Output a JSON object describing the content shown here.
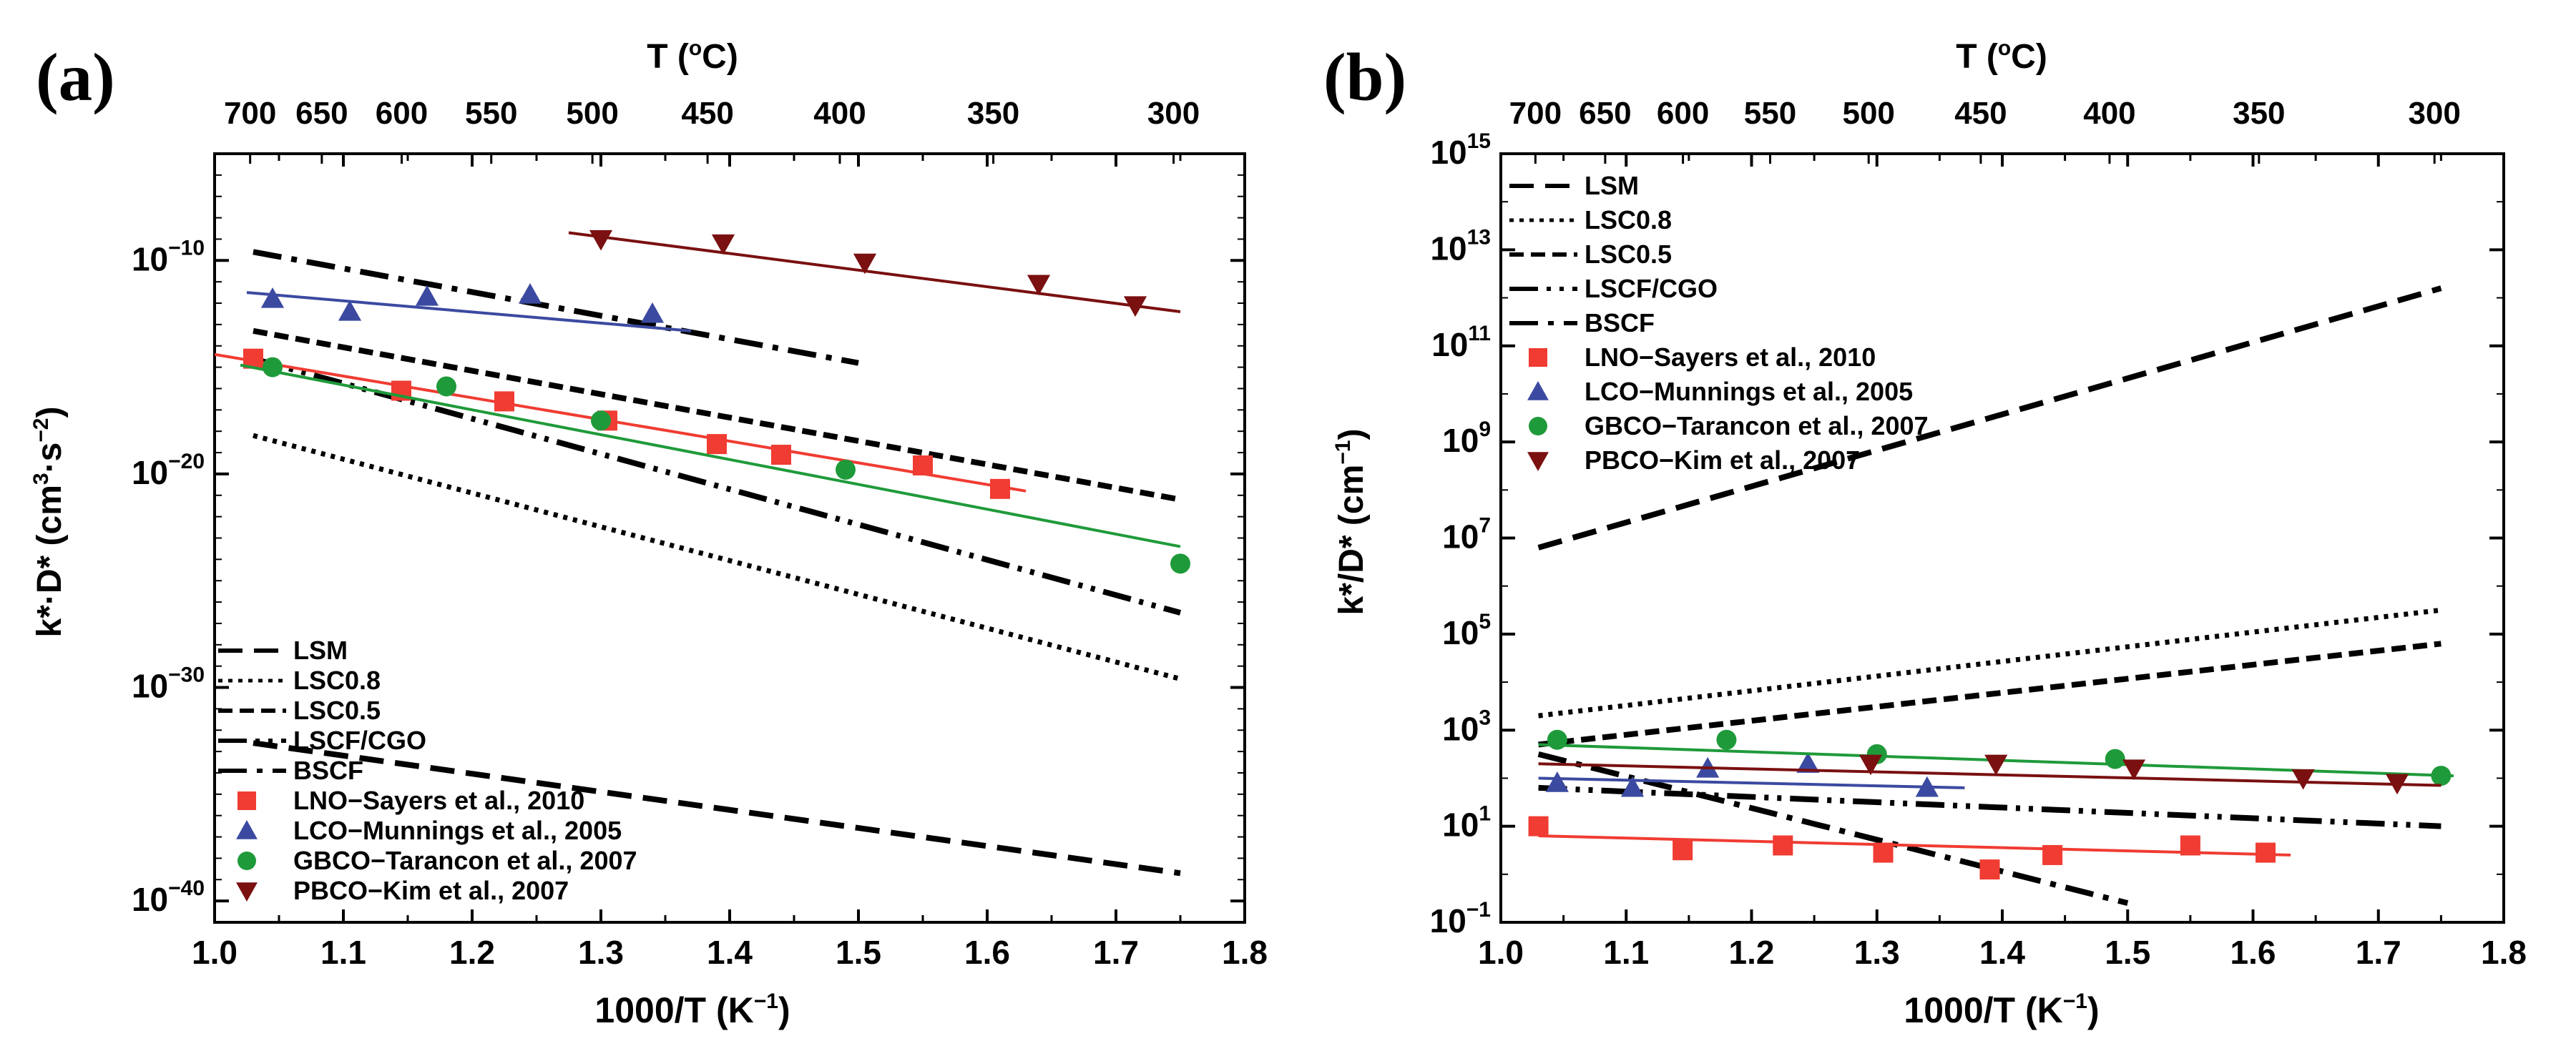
{
  "figure": {
    "panels": [
      "(a)",
      "(b)"
    ]
  },
  "colors": {
    "red": "#f03c32",
    "blue": "#3b4aa0",
    "green": "#1f9a3a",
    "darkred": "#7a1010",
    "black": "#000000"
  },
  "chart_data": [
    {
      "type": "scatter",
      "panel": "(a)",
      "xlabel": "1000/T (K",
      "xlabel_sup": "−1",
      "xlabel_end": ")",
      "ylabel": "k*·D* (cm",
      "ylabel_sup1": "3",
      "ylabel_mid": "·s",
      "ylabel_sup2": "−2",
      "ylabel_end": ")",
      "top_axis_label": "T (",
      "top_axis_sup": "o",
      "top_axis_end": "C)",
      "xlim": [
        1.0,
        1.8
      ],
      "y_scale": "log",
      "ylim_log10": [
        -41,
        -5
      ],
      "x_ticks": [
        "1.0",
        "1.1",
        "1.2",
        "1.3",
        "1.4",
        "1.5",
        "1.6",
        "1.7",
        "1.8"
      ],
      "y_ticks": [
        {
          "base": "10",
          "exp": "−10"
        },
        {
          "base": "10",
          "exp": "−20"
        },
        {
          "base": "10",
          "exp": "−30"
        },
        {
          "base": "10",
          "exp": "−40"
        }
      ],
      "top_ticks_C": [
        "700",
        "650",
        "600",
        "550",
        "500",
        "450",
        "400",
        "350",
        "300"
      ],
      "legend_position": "bottom-left",
      "lines": [
        {
          "name": "LSM",
          "style": "dash",
          "x": [
            1.03,
            1.75
          ],
          "y_log10": [
            -32.6,
            -38.7
          ]
        },
        {
          "name": "LSC0.8",
          "style": "dot",
          "x": [
            1.03,
            1.75
          ],
          "y_log10": [
            -18.2,
            -29.6
          ]
        },
        {
          "name": "LSC0.5",
          "style": "dashshort",
          "x": [
            1.03,
            1.75
          ],
          "y_log10": [
            -13.3,
            -21.2
          ]
        },
        {
          "name": "LSCF/CGO",
          "style": "dashdotdot",
          "x": [
            1.03,
            1.75
          ],
          "y_log10": [
            -14.6,
            -26.5
          ]
        },
        {
          "name": "BSCF",
          "style": "dashdot",
          "x": [
            1.03,
            1.5
          ],
          "y_log10": [
            -9.6,
            -14.8
          ]
        }
      ],
      "series": [
        {
          "name": "LNO−Sayers et al., 2010",
          "marker": "square",
          "color": "#f03c32",
          "x": [
            1.03,
            1.145,
            1.225,
            1.305,
            1.39,
            1.44,
            1.55,
            1.61
          ],
          "y_log10": [
            -14.6,
            -16.1,
            -16.6,
            -17.5,
            -18.6,
            -19.1,
            -19.6,
            -20.7
          ],
          "fit_x": [
            1.0,
            1.63
          ],
          "fit_y_log10": [
            -14.4,
            -20.8
          ]
        },
        {
          "name": "LCO−Munnings et al., 2005",
          "marker": "triangle-up",
          "color": "#3b4aa0",
          "x": [
            1.045,
            1.105,
            1.165,
            1.245,
            1.34
          ],
          "y_log10": [
            -11.8,
            -12.4,
            -11.7,
            -11.6,
            -12.5
          ],
          "fit_x": [
            1.025,
            1.37
          ],
          "fit_y_log10": [
            -11.5,
            -13.3
          ]
        },
        {
          "name": "GBCO−Tarancon et al., 2007",
          "marker": "circle",
          "color": "#1f9a3a",
          "x": [
            1.045,
            1.18,
            1.3,
            1.49,
            1.75
          ],
          "y_log10": [
            -15.0,
            -15.9,
            -17.5,
            -19.8,
            -24.2
          ],
          "fit_x": [
            1.02,
            1.75
          ],
          "fit_y_log10": [
            -14.9,
            -23.4
          ]
        },
        {
          "name": "PBCO−Kim et al., 2007",
          "marker": "triangle-down",
          "color": "#7a1010",
          "x": [
            1.3,
            1.395,
            1.505,
            1.64,
            1.715
          ],
          "y_log10": [
            -9.0,
            -9.2,
            -10.1,
            -11.1,
            -12.1
          ],
          "fit_x": [
            1.275,
            1.75
          ],
          "fit_y_log10": [
            -8.7,
            -12.4
          ]
        }
      ]
    },
    {
      "type": "scatter",
      "panel": "(b)",
      "xlabel": "1000/T (K",
      "xlabel_sup": "−1",
      "xlabel_end": ")",
      "ylabel": "k*/D* (cm",
      "ylabel_sup1": "−1",
      "ylabel_end": ")",
      "top_axis_label": "T (",
      "top_axis_sup": "o",
      "top_axis_end": "C)",
      "xlim": [
        1.0,
        1.8
      ],
      "y_scale": "log",
      "ylim_log10": [
        -1,
        15
      ],
      "x_ticks": [
        "1.0",
        "1.1",
        "1.2",
        "1.3",
        "1.4",
        "1.5",
        "1.6",
        "1.7",
        "1.8"
      ],
      "y_ticks": [
        {
          "base": "10",
          "exp": "15"
        },
        {
          "base": "10",
          "exp": "13"
        },
        {
          "base": "10",
          "exp": "11"
        },
        {
          "base": "10",
          "exp": "9"
        },
        {
          "base": "10",
          "exp": "7"
        },
        {
          "base": "10",
          "exp": "5"
        },
        {
          "base": "10",
          "exp": "3"
        },
        {
          "base": "10",
          "exp": "1"
        },
        {
          "base": "10",
          "exp": "−1"
        }
      ],
      "top_ticks_C": [
        "700",
        "650",
        "600",
        "550",
        "500",
        "450",
        "400",
        "350",
        "300"
      ],
      "legend_position": "top-left",
      "lines": [
        {
          "name": "LSM",
          "style": "dash",
          "x": [
            1.03,
            1.75
          ],
          "y_log10": [
            6.8,
            12.2
          ]
        },
        {
          "name": "LSC0.8",
          "style": "dot",
          "x": [
            1.03,
            1.75
          ],
          "y_log10": [
            3.3,
            5.5
          ]
        },
        {
          "name": "LSC0.5",
          "style": "dashshort",
          "x": [
            1.03,
            1.75
          ],
          "y_log10": [
            2.7,
            4.8
          ]
        },
        {
          "name": "LSCF/CGO",
          "style": "dashdotdot",
          "x": [
            1.03,
            1.75
          ],
          "y_log10": [
            1.8,
            1.0
          ]
        },
        {
          "name": "BSCF",
          "style": "dashdot",
          "x": [
            1.03,
            1.5
          ],
          "y_log10": [
            2.5,
            -0.6
          ]
        }
      ],
      "series": [
        {
          "name": "LNO−Sayers et al., 2010",
          "marker": "square",
          "color": "#f03c32",
          "x": [
            1.03,
            1.145,
            1.225,
            1.305,
            1.39,
            1.44,
            1.55,
            1.61
          ],
          "y_log10": [
            1.0,
            0.5,
            0.6,
            0.45,
            0.1,
            0.4,
            0.6,
            0.45
          ],
          "fit_x": [
            1.03,
            1.63
          ],
          "fit_y_log10": [
            0.8,
            0.4
          ]
        },
        {
          "name": "LCO−Munnings et al., 2005",
          "marker": "triangle-up",
          "color": "#3b4aa0",
          "x": [
            1.045,
            1.105,
            1.165,
            1.245,
            1.34
          ],
          "y_log10": [
            1.9,
            1.8,
            2.2,
            2.3,
            1.8
          ],
          "fit_x": [
            1.03,
            1.37
          ],
          "fit_y_log10": [
            2.0,
            1.8
          ]
        },
        {
          "name": "GBCO−Tarancon et al., 2007",
          "marker": "circle",
          "color": "#1f9a3a",
          "x": [
            1.045,
            1.18,
            1.3,
            1.49,
            1.75
          ],
          "y_log10": [
            2.8,
            2.8,
            2.5,
            2.4,
            2.05
          ],
          "fit_x": [
            1.03,
            1.76
          ],
          "fit_y_log10": [
            2.7,
            2.05
          ]
        },
        {
          "name": "PBCO−Kim et al., 2007",
          "marker": "triangle-down",
          "color": "#7a1010",
          "x": [
            1.295,
            1.395,
            1.505,
            1.64,
            1.715
          ],
          "y_log10": [
            2.3,
            2.3,
            2.2,
            2.0,
            1.9
          ],
          "fit_x": [
            1.03,
            1.75
          ],
          "fit_y_log10": [
            2.3,
            1.85
          ]
        }
      ]
    }
  ]
}
